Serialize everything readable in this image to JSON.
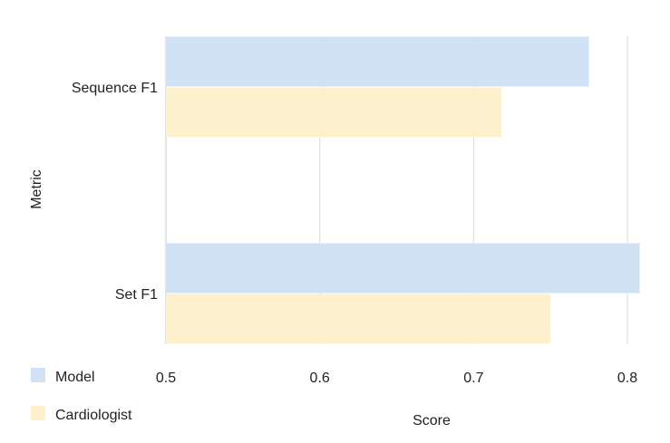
{
  "chart_data": {
    "type": "bar",
    "orientation": "horizontal",
    "categories": [
      "Sequence F1",
      "Set F1"
    ],
    "series": [
      {
        "name": "Model",
        "values": [
          0.775,
          0.808
        ],
        "color": "#cfe2f6"
      },
      {
        "name": "Cardiologist",
        "values": [
          0.718,
          0.75
        ],
        "color": "#fdf1cd"
      }
    ],
    "xlabel": "Score",
    "ylabel": "Metric",
    "xlim": [
      0.5,
      0.81
    ],
    "xticks": [
      "0.5",
      "0.6",
      "0.7",
      "0.8"
    ],
    "grid": true,
    "legend": "bottom-left"
  }
}
